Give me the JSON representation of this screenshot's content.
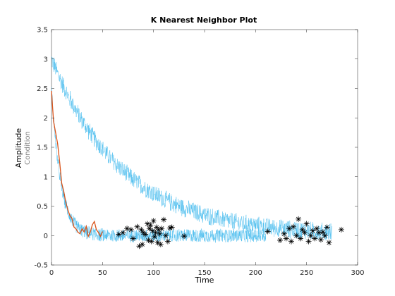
{
  "chart_data": {
    "type": "line",
    "title": "K Nearest Neighbor Plot",
    "xlabel": "Time",
    "ylabel": "Amplitude",
    "ylabel_secondary": "Condition",
    "xlim": [
      0,
      300
    ],
    "ylim": [
      -0.5,
      3.5
    ],
    "xticks": [
      "0",
      "50",
      "100",
      "150",
      "200",
      "250",
      "300"
    ],
    "yticks": [
      "-0.5",
      "0",
      "0.5",
      "1",
      "1.5",
      "2",
      "2.5",
      "3",
      "3.5"
    ],
    "grid": false,
    "legend": "none",
    "colors": {
      "band": "#4dbeee",
      "test": "#d95319",
      "neighbors": "#000000",
      "axis": "#262626"
    },
    "series": [
      {
        "kind": "noisy-band",
        "decay": "slow",
        "x_range": [
          0,
          275
        ],
        "start": 3.0,
        "end": 0.0,
        "tau": 70,
        "amplitude": 0.12
      },
      {
        "kind": "noisy-band",
        "decay": "fast",
        "x_range": [
          0,
          210
        ],
        "start": 2.5,
        "end": 0.0,
        "tau": 9,
        "amplitude": 0.09
      },
      {
        "kind": "line",
        "x": [
          0,
          2,
          4,
          6,
          8,
          10,
          12,
          14,
          16,
          18,
          20,
          22,
          24,
          26,
          28,
          30,
          32,
          34,
          36,
          38,
          40,
          42,
          44,
          46,
          48,
          50
        ],
        "y": [
          2.45,
          1.95,
          1.75,
          1.55,
          1.25,
          0.9,
          0.75,
          0.55,
          0.45,
          0.35,
          0.3,
          0.15,
          0.1,
          0.05,
          0.05,
          0.1,
          0.05,
          0.15,
          0.0,
          0.05,
          0.2,
          0.25,
          0.1,
          0.05,
          0.0,
          0.05
        ]
      },
      {
        "kind": "scatter",
        "marker": "asterisk",
        "x": [
          66,
          70,
          74,
          78,
          80,
          84,
          86,
          88,
          89,
          90,
          92,
          94,
          95,
          96,
          97,
          98,
          99,
          100,
          101,
          102,
          103,
          104,
          105,
          106,
          107,
          108,
          110,
          112,
          114,
          116,
          118,
          130,
          212,
          224,
          228,
          230,
          233,
          235,
          237,
          240,
          242,
          244,
          246,
          248,
          250,
          252,
          254,
          256,
          258,
          260,
          262,
          264,
          266,
          268,
          270,
          272,
          284
        ],
        "y": [
          0.02,
          0.05,
          0.12,
          0.1,
          -0.05,
          0.15,
          -0.18,
          0.1,
          -0.15,
          0.05,
          0.02,
          0.2,
          -0.08,
          0.12,
          0.18,
          -0.1,
          0.08,
          0.25,
          -0.02,
          0.05,
          0.14,
          -0.12,
          0.1,
          0.03,
          -0.15,
          0.12,
          0.27,
          0.0,
          -0.1,
          0.13,
          0.14,
          -0.01,
          0.07,
          -0.08,
          0.03,
          -0.05,
          0.12,
          -0.1,
          0.15,
          0.0,
          0.28,
          -0.05,
          0.1,
          0.05,
          0.2,
          -0.1,
          0.0,
          0.08,
          -0.05,
          0.12,
          0.05,
          -0.07,
          0.06,
          0.0,
          0.14,
          -0.12,
          0.1
        ]
      }
    ]
  }
}
